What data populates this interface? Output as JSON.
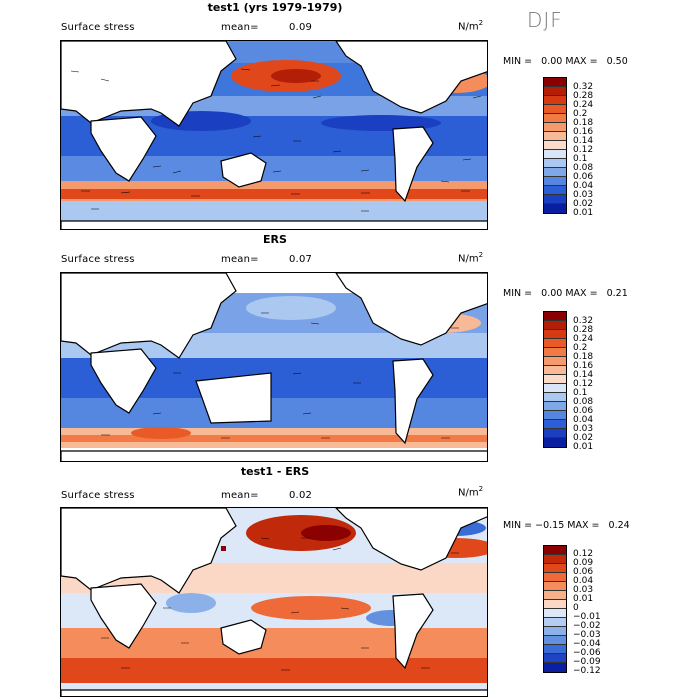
{
  "season": "DJF",
  "panels": [
    {
      "title": "test1 (yrs 1979-1979)",
      "variable": "Surface stress",
      "mean_label": "mean=",
      "mean": "0.09",
      "units_base": "N/m",
      "units_exp": "2",
      "min_label": "MIN =",
      "min": "0.00",
      "max_label": "MAX =",
      "max": "0.50",
      "colorbar": [
        "0.32",
        "0.28",
        "0.24",
        "0.2",
        "0.18",
        "0.16",
        "0.14",
        "0.12",
        "0.1",
        "0.08",
        "0.06",
        "0.04",
        "0.03",
        "0.02",
        "0.01"
      ],
      "colors": [
        "#8b0000",
        "#b21e06",
        "#d53a12",
        "#ea5a26",
        "#f27a45",
        "#f59a6c",
        "#f8b996",
        "#fbdccb",
        "#d8e6f8",
        "#aac8f0",
        "#7fa8e8",
        "#5586e0",
        "#2c5fd6",
        "#1a3fc0",
        "#0a1fa0"
      ]
    },
    {
      "title": "ERS",
      "variable": "Surface stress",
      "mean_label": "mean=",
      "mean": "0.07",
      "units_base": "N/m",
      "units_exp": "2",
      "min_label": "MIN =",
      "min": "0.00",
      "max_label": "MAX =",
      "max": "0.21",
      "colorbar": [
        "0.32",
        "0.28",
        "0.24",
        "0.2",
        "0.18",
        "0.16",
        "0.14",
        "0.12",
        "0.1",
        "0.08",
        "0.06",
        "0.04",
        "0.03",
        "0.02",
        "0.01"
      ],
      "colors": [
        "#8b0000",
        "#b21e06",
        "#d53a12",
        "#ea5a26",
        "#f27a45",
        "#f59a6c",
        "#f8b996",
        "#fbdccb",
        "#d8e6f8",
        "#aac8f0",
        "#7fa8e8",
        "#5586e0",
        "#2c5fd6",
        "#1a3fc0",
        "#0a1fa0"
      ]
    },
    {
      "title": "test1 - ERS",
      "variable": "Surface stress",
      "mean_label": "mean=",
      "mean": "0.02",
      "units_base": "N/m",
      "units_exp": "2",
      "min_label": "MIN =",
      "min": "−0.15",
      "max_label": "MAX =",
      "max": "0.24",
      "colorbar": [
        "0.12",
        "0.09",
        "0.06",
        "0.04",
        "0.03",
        "0.01",
        "0",
        "−0.01",
        "−0.02",
        "−0.03",
        "−0.04",
        "−0.06",
        "−0.09",
        "−0.12"
      ],
      "colors": [
        "#8b0000",
        "#c02a0a",
        "#e0481c",
        "#ee6a38",
        "#f48c5c",
        "#f8b08c",
        "#fbd8c6",
        "#dce8f8",
        "#b4cdf0",
        "#8cb0e8",
        "#6490e0",
        "#3a6cd8",
        "#1e44c4",
        "#0a20a0"
      ]
    }
  ]
}
